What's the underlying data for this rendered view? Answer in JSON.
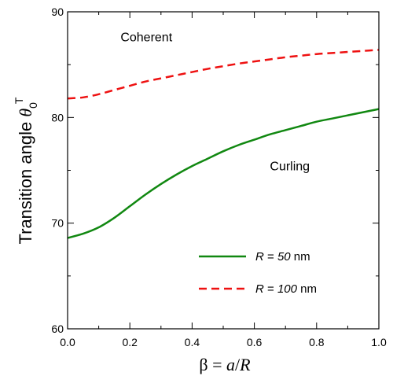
{
  "chart_data": {
    "type": "line",
    "xlabel": {
      "beta": "β",
      "eq": " = ",
      "a": "a",
      "slash": "/",
      "R": "R"
    },
    "ylabel": {
      "main": "Transition angle ",
      "theta": "θ",
      "sub": "0",
      "sup": "T"
    },
    "xlim": [
      0.0,
      1.0
    ],
    "ylim": [
      60,
      90
    ],
    "x_ticks": [
      0.0,
      0.2,
      0.4,
      0.6,
      0.8,
      1.0
    ],
    "x_tick_labels": [
      "0.0",
      "0.2",
      "0.4",
      "0.6",
      "0.8",
      "1.0"
    ],
    "y_ticks": [
      60,
      70,
      80,
      90
    ],
    "y_tick_labels": [
      "60",
      "70",
      "80",
      "90"
    ],
    "grid": false,
    "legend_position": "bottom-right",
    "series": [
      {
        "name": "R = 50 nm",
        "legend": {
          "var": "R",
          "eq": " = ",
          "val": "50",
          "unit": " nm"
        },
        "style": "solid",
        "color": "#118811",
        "x": [
          0.0,
          0.05,
          0.1,
          0.15,
          0.2,
          0.25,
          0.3,
          0.35,
          0.4,
          0.45,
          0.5,
          0.55,
          0.6,
          0.65,
          0.7,
          0.75,
          0.8,
          0.85,
          0.9,
          0.95,
          1.0
        ],
        "y": [
          68.6,
          69.0,
          69.6,
          70.5,
          71.6,
          72.7,
          73.7,
          74.6,
          75.4,
          76.1,
          76.8,
          77.4,
          77.9,
          78.4,
          78.8,
          79.2,
          79.6,
          79.9,
          80.2,
          80.5,
          80.8
        ]
      },
      {
        "name": "R = 100 nm",
        "legend": {
          "var": "R",
          "eq": " = ",
          "val": "100",
          "unit": " nm"
        },
        "style": "dashed",
        "color": "#ee1111",
        "x": [
          0.0,
          0.05,
          0.1,
          0.15,
          0.2,
          0.25,
          0.3,
          0.35,
          0.4,
          0.45,
          0.5,
          0.55,
          0.6,
          0.65,
          0.7,
          0.75,
          0.8,
          0.85,
          0.9,
          0.95,
          1.0
        ],
        "y": [
          81.8,
          81.9,
          82.2,
          82.6,
          83.0,
          83.4,
          83.7,
          84.0,
          84.3,
          84.6,
          84.85,
          85.1,
          85.3,
          85.5,
          85.7,
          85.85,
          86.0,
          86.1,
          86.2,
          86.3,
          86.4
        ]
      }
    ],
    "annotations": [
      {
        "text": "Coherent",
        "x": 0.17,
        "y": 87.2
      },
      {
        "text": "Curling",
        "x": 0.65,
        "y": 75.0
      }
    ]
  }
}
